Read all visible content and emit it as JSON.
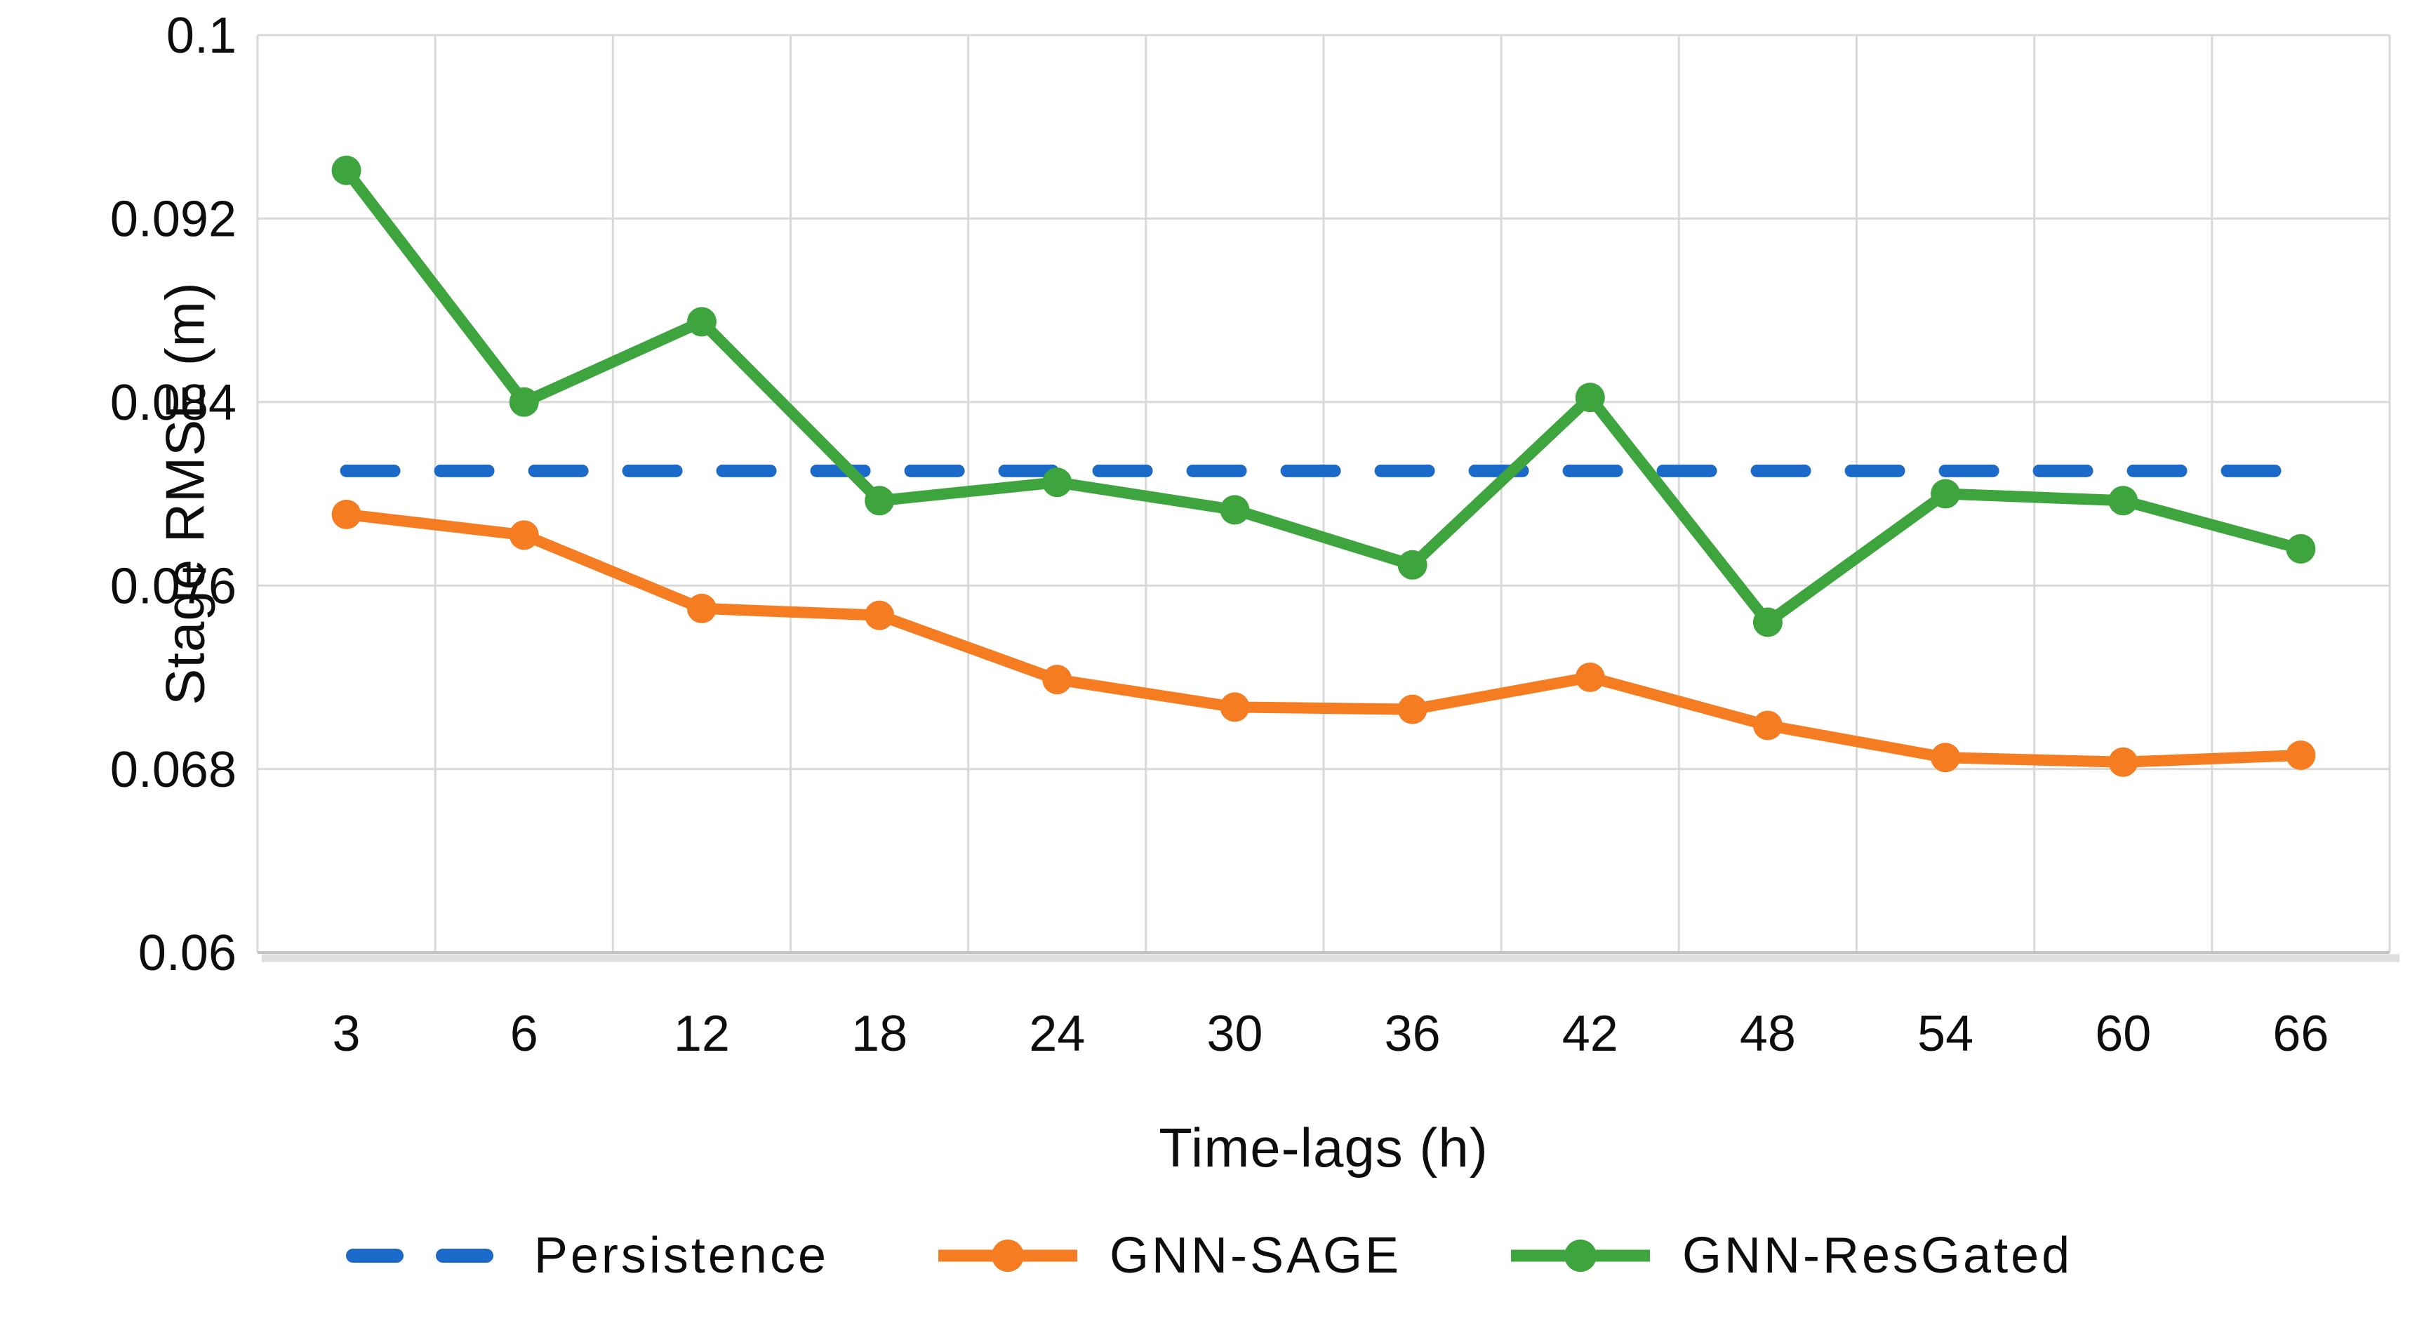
{
  "chart_data": {
    "type": "line",
    "title": "",
    "xlabel": "Time-lags (h)",
    "ylabel": "Stage RMSE (m)",
    "categories": [
      "3",
      "6",
      "12",
      "18",
      "24",
      "30",
      "36",
      "42",
      "48",
      "54",
      "60",
      "66"
    ],
    "x_values": [
      3,
      6,
      12,
      18,
      24,
      30,
      36,
      42,
      48,
      54,
      60,
      66
    ],
    "ylim": [
      0.06,
      0.1
    ],
    "y_ticks": [
      {
        "value": 0.1,
        "label": "0.1"
      },
      {
        "value": 0.092,
        "label": "0.092"
      },
      {
        "value": 0.084,
        "label": "0.084"
      },
      {
        "value": 0.076,
        "label": "0.076"
      },
      {
        "value": 0.068,
        "label": "0.068"
      },
      {
        "value": 0.06,
        "label": "0.06"
      }
    ],
    "grid": true,
    "legend_position": "bottom",
    "series": [
      {
        "name": "Persistence",
        "style": "dashed",
        "markers": false,
        "color": "#1B69C8",
        "values": [
          0.081,
          0.081,
          0.081,
          0.081,
          0.081,
          0.081,
          0.081,
          0.081,
          0.081,
          0.081,
          0.081,
          0.081
        ]
      },
      {
        "name": "GNN-SAGE",
        "style": "solid",
        "markers": true,
        "color": "#F57C21",
        "values": [
          0.0791,
          0.0782,
          0.075,
          0.0747,
          0.0719,
          0.0707,
          0.0706,
          0.072,
          0.0699,
          0.0685,
          0.0683,
          0.0686
        ]
      },
      {
        "name": "GNN-ResGated",
        "style": "solid",
        "markers": true,
        "color": "#3EA53E",
        "values": [
          0.0941,
          0.084,
          0.0875,
          0.0797,
          0.0805,
          0.0793,
          0.0769,
          0.0842,
          0.0744,
          0.08,
          0.0797,
          0.0776
        ]
      }
    ],
    "colors": {
      "gridline": "#D9D9D9",
      "axis_line": "#C3C3C3",
      "axis_shadow": "rgba(160,160,160,0.35)",
      "tick_text": "#0d0d0d"
    }
  },
  "legend": {
    "items": [
      {
        "label": "Persistence"
      },
      {
        "label": "GNN-SAGE"
      },
      {
        "label": "GNN-ResGated"
      }
    ]
  }
}
